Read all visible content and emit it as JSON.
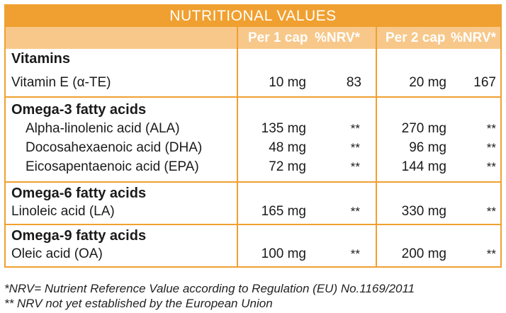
{
  "title": "NUTRITIONAL VALUES",
  "columns": {
    "per1": "Per 1 cap",
    "nrv1": "%NRV*",
    "per2": "Per 2 cap",
    "nrv2": "%NRV*"
  },
  "groups": [
    {
      "name": "Vitamins",
      "rows": [
        {
          "label": "Vitamin E (α-TE)",
          "per1": "10 mg",
          "nrv1": "83",
          "per2": "20 mg",
          "nrv2": "167"
        }
      ]
    },
    {
      "name": "Omega-3 fatty acids",
      "rows": [
        {
          "label": "Alpha-linolenic acid (ALA)",
          "per1": "135 mg",
          "nrv1": "**",
          "per2": "270 mg",
          "nrv2": "**"
        },
        {
          "label": "Docosahexaenoic acid (DHA)",
          "per1": "48 mg",
          "nrv1": "**",
          "per2": "96 mg",
          "nrv2": "**"
        },
        {
          "label": "Eicosapentaenoic acid (EPA)",
          "per1": "72 mg",
          "nrv1": "**",
          "per2": "144 mg",
          "nrv2": "**"
        }
      ]
    },
    {
      "name": "Omega-6 fatty acids",
      "rows": [
        {
          "label": "Linoleic acid (LA)",
          "per1": "165 mg",
          "nrv1": "**",
          "per2": "330 mg",
          "nrv2": "**"
        }
      ]
    },
    {
      "name": "Omega-9 fatty acids",
      "rows": [
        {
          "label": "Oleic acid (OA)",
          "per1": "100 mg",
          "nrv1": "**",
          "per2": "200 mg",
          "nrv2": "**"
        }
      ]
    }
  ],
  "footnotes": [
    "*NRV= Nutrient Reference Value according to Regulation (EU) No.1169/2011",
    "** NRV not yet established by the European Union"
  ],
  "colors": {
    "accent": "#f0a030",
    "header_band": "#f7c88a"
  }
}
